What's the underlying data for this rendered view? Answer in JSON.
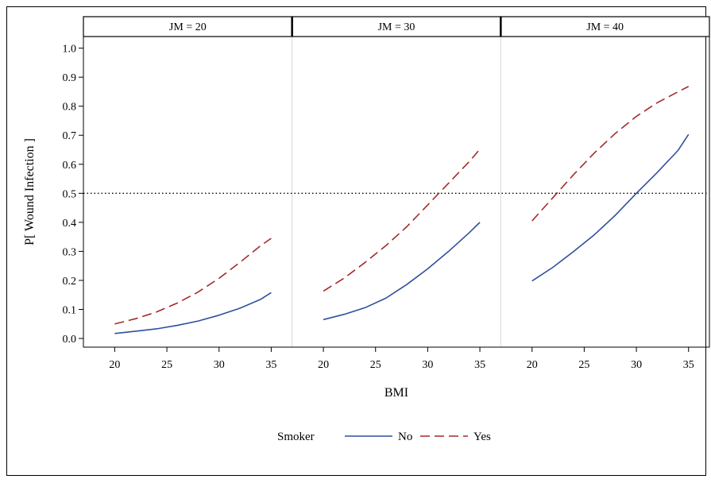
{
  "chart_data": {
    "type": "line",
    "xlabel": "BMI",
    "ylabel": "P[ Wound Infection ]",
    "xlim": [
      17,
      37
    ],
    "ylim": [
      -0.03,
      1.04
    ],
    "x_ticks": [
      20,
      25,
      30,
      35
    ],
    "y_ticks": [
      0.0,
      0.1,
      0.2,
      0.3,
      0.4,
      0.5,
      0.6,
      0.7,
      0.8,
      0.9,
      1.0
    ],
    "y_tick_labels": [
      "0.0",
      "0.1",
      "0.2",
      "0.3",
      "0.4",
      "0.5",
      "0.6",
      "0.7",
      "0.8",
      "0.9",
      "1.0"
    ],
    "reference_line": {
      "y": 0.5,
      "style": "dotted"
    },
    "grid": false,
    "legend": {
      "title": "Smoker",
      "position": "bottom",
      "entries": [
        {
          "label": "No",
          "color": "#2f4f9f",
          "dash": "solid"
        },
        {
          "label": "Yes",
          "color": "#a52a2a",
          "dash": "dashed"
        }
      ]
    },
    "panels": [
      {
        "label": "JM = 20",
        "series": [
          {
            "name": "No",
            "x": [
              20,
              22,
              24,
              26,
              28,
              30,
              32,
              34,
              35
            ],
            "y": [
              0.017,
              0.025,
              0.033,
              0.045,
              0.06,
              0.08,
              0.104,
              0.135,
              0.158
            ]
          },
          {
            "name": "Yes",
            "x": [
              20,
              22,
              24,
              26,
              28,
              30,
              32,
              34,
              35
            ],
            "y": [
              0.05,
              0.068,
              0.091,
              0.122,
              0.16,
              0.207,
              0.262,
              0.32,
              0.345
            ]
          }
        ]
      },
      {
        "label": "JM = 30",
        "series": [
          {
            "name": "No",
            "x": [
              20,
              22,
              24,
              26,
              28,
              30,
              32,
              34,
              35
            ],
            "y": [
              0.065,
              0.083,
              0.106,
              0.139,
              0.186,
              0.24,
              0.3,
              0.365,
              0.4
            ]
          },
          {
            "name": "Yes",
            "x": [
              20,
              22,
              24,
              26,
              28,
              30,
              32,
              34,
              35
            ],
            "y": [
              0.163,
              0.208,
              0.262,
              0.32,
              0.385,
              0.46,
              0.535,
              0.61,
              0.652
            ]
          }
        ]
      },
      {
        "label": "JM = 40",
        "series": [
          {
            "name": "No",
            "x": [
              20,
              22,
              24,
              26,
              28,
              30,
              32,
              34,
              35
            ],
            "y": [
              0.198,
              0.245,
              0.3,
              0.358,
              0.425,
              0.5,
              0.572,
              0.648,
              0.703
            ]
          },
          {
            "name": "Yes",
            "x": [
              20,
              22,
              24,
              26,
              28,
              30,
              32,
              34,
              35
            ],
            "y": [
              0.405,
              0.485,
              0.565,
              0.64,
              0.707,
              0.765,
              0.812,
              0.85,
              0.868
            ]
          }
        ]
      }
    ]
  }
}
